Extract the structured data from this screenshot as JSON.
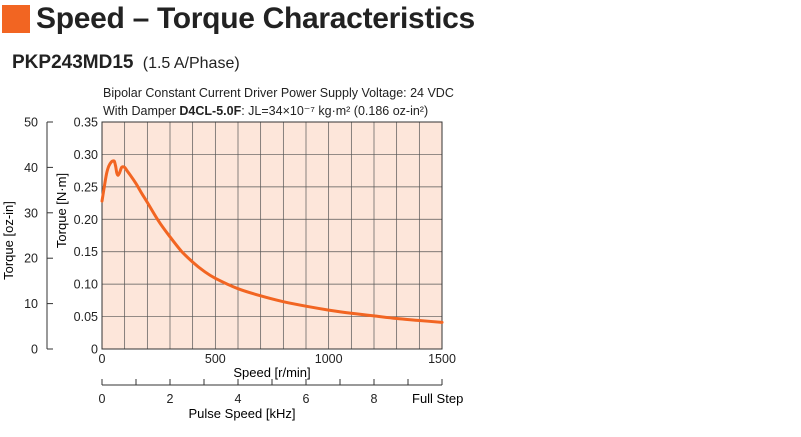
{
  "header": {
    "title": "Speed – Torque Characteristics",
    "model": "PKP243MD15",
    "current": "(1.5 A/Phase)",
    "accent_color": "#f26522"
  },
  "conditions": {
    "line1": "Bipolar Constant Current Driver  Power Supply Voltage: 24 VDC",
    "line2_prefix": "With Damper ",
    "damper_model": "D4CL-5.0F",
    "line2_suffix": ": JL=34×10⁻⁷ kg·m² (0.186 oz-in²)"
  },
  "chart_data": {
    "type": "line",
    "background_color": "#fde6da",
    "line_color": "#f26522",
    "grid": true,
    "x": {
      "label": "Speed [r/min]",
      "range": [
        0,
        1500
      ],
      "ticks": [
        0,
        500,
        1000,
        1500
      ],
      "ticks_count": 16
    },
    "x2": {
      "label": "Pulse Speed [kHz]",
      "range": [
        0,
        10
      ],
      "ticks": [
        0,
        2,
        4,
        6,
        8
      ],
      "ticks_count": 10,
      "end_label": "Full Step"
    },
    "y": {
      "label": "Torque [N·m]",
      "range": [
        0,
        0.35
      ],
      "ticks": [
        "0",
        "0.05",
        "0.10",
        "0.15",
        "0.20",
        "0.25",
        "0.30",
        "0.35"
      ]
    },
    "y2": {
      "label": "Torque [oz-in]",
      "range": [
        0,
        50
      ],
      "ticks": [
        0,
        10,
        20,
        30,
        40,
        50
      ]
    },
    "series": [
      {
        "x": [
          0,
          10,
          20,
          30,
          40,
          50,
          55,
          60,
          65,
          70,
          75,
          80,
          85,
          90,
          100,
          110,
          125,
          150,
          175,
          200,
          250,
          300,
          350,
          400,
          450,
          500,
          600,
          700,
          800,
          900,
          1000,
          1100,
          1200,
          1300,
          1400,
          1500
        ],
        "values": [
          0.228,
          0.25,
          0.27,
          0.282,
          0.288,
          0.29,
          0.289,
          0.282,
          0.272,
          0.268,
          0.27,
          0.274,
          0.279,
          0.281,
          0.28,
          0.275,
          0.268,
          0.255,
          0.24,
          0.226,
          0.197,
          0.173,
          0.151,
          0.134,
          0.12,
          0.109,
          0.093,
          0.082,
          0.073,
          0.066,
          0.06,
          0.055,
          0.051,
          0.047,
          0.044,
          0.041
        ]
      }
    ]
  }
}
